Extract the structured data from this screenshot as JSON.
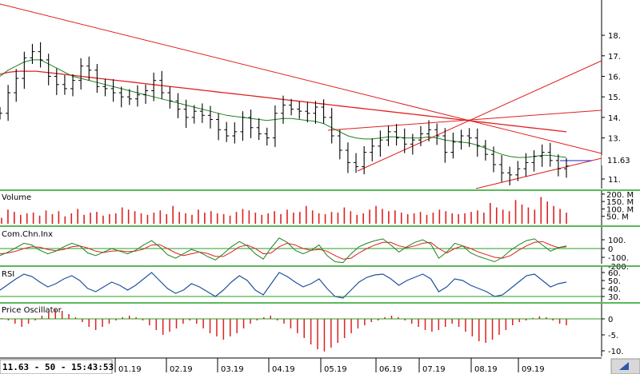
{
  "chart_data": {
    "type": "line",
    "months": [
      "01.19",
      "02.19",
      "03.19",
      "04.19",
      "05.19",
      "06.19",
      "07.19",
      "08.19",
      "09.19"
    ],
    "status": "11.63 - 50 - 15:43:53",
    "price": {
      "axis_ticks": [
        "11.",
        "12.",
        "13.",
        "14.",
        "15.",
        "16.",
        "17.",
        "18."
      ],
      "last_value": "11.63",
      "close": [
        14.2,
        15.2,
        15.9,
        16.9,
        17.2,
        16.8,
        16.0,
        15.6,
        15.4,
        15.8,
        16.5,
        16.3,
        15.5,
        15.4,
        15.2,
        15.0,
        14.9,
        15.1,
        15.3,
        15.8,
        15.2,
        14.8,
        14.4,
        14.0,
        14.3,
        14.1,
        13.9,
        13.4,
        13.1,
        13.3,
        14.0,
        13.5,
        13.2,
        13.0,
        14.2,
        14.6,
        14.4,
        14.3,
        14.2,
        14.5,
        14.0,
        13.1,
        12.4,
        11.8,
        11.6,
        12.3,
        12.6,
        12.9,
        13.3,
        13.0,
        12.7,
        12.9,
        13.2,
        13.4,
        13.1,
        12.3,
        12.8,
        13.1,
        13.0,
        12.6,
        12.2,
        11.7,
        11.3,
        11.2,
        11.5,
        11.8,
        12.1,
        12.3,
        11.9,
        11.5,
        11.63
      ],
      "ma_short": [
        16.0,
        16.3,
        16.5,
        16.7,
        16.8,
        16.8,
        16.6,
        16.4,
        16.2,
        16.0,
        15.9,
        15.8,
        15.7,
        15.6,
        15.5,
        15.4,
        15.3,
        15.2,
        15.1,
        15.0,
        14.9,
        14.8,
        14.7,
        14.6,
        14.5,
        14.4,
        14.3,
        14.2,
        14.1,
        14.05,
        14.0,
        13.95,
        13.9,
        13.85,
        13.9,
        13.95,
        13.95,
        13.9,
        13.85,
        13.8,
        13.7,
        13.5,
        13.3,
        13.1,
        13.0,
        12.95,
        12.95,
        13.0,
        13.05,
        13.05,
        13.0,
        13.0,
        13.0,
        13.05,
        13.0,
        12.9,
        12.85,
        12.8,
        12.75,
        12.65,
        12.5,
        12.35,
        12.2,
        12.1,
        12.05,
        12.05,
        12.1,
        12.15,
        12.15,
        12.1,
        12.05
      ],
      "ma_long": [
        16.1,
        16.2,
        16.25,
        16.25,
        16.25,
        16.2,
        16.15,
        16.1,
        16.05,
        16.0,
        15.95,
        15.9,
        15.85,
        15.8,
        15.75,
        15.7,
        15.65,
        15.6,
        15.55,
        15.5,
        15.45,
        15.4,
        15.35,
        15.3,
        15.25,
        15.2,
        15.15,
        15.1,
        15.05,
        15.0,
        14.95,
        14.9,
        14.85,
        14.8,
        14.75,
        14.7,
        14.65,
        14.6,
        14.55,
        14.5,
        14.45,
        14.4,
        14.35,
        14.3,
        14.25,
        14.2,
        14.15,
        14.1,
        14.05,
        14.0,
        13.95,
        13.9,
        13.85,
        13.8,
        13.75,
        13.7,
        13.65,
        13.6,
        13.55,
        13.5,
        13.45,
        13.4,
        13.35,
        13.3
      ]
    },
    "volume": {
      "label": "Volume",
      "axis_ticks": [
        "200. M",
        "150. M",
        "100. M",
        "50. M"
      ],
      "values": [
        40,
        95,
        80,
        60,
        70,
        75,
        55,
        90,
        65,
        85,
        50,
        70,
        100,
        60,
        75,
        80,
        55,
        65,
        70,
        110,
        95,
        85,
        70,
        60,
        75,
        90,
        65,
        120,
        80,
        70,
        60,
        95,
        75,
        85,
        70,
        65,
        55,
        80,
        100,
        90,
        75,
        60,
        70,
        85,
        65,
        95,
        75,
        80,
        120,
        90,
        70,
        65,
        80,
        75,
        110,
        85,
        60,
        70,
        95,
        120,
        100,
        85,
        90,
        75,
        65,
        70,
        80,
        60,
        75,
        95,
        85,
        70,
        65,
        70,
        80,
        90,
        75,
        140,
        110,
        95,
        85,
        160,
        130,
        110,
        95,
        180,
        150,
        120,
        100,
        75
      ]
    },
    "cci": {
      "label": "Com.Chn.Inx",
      "axis_ticks": [
        "100.",
        "0",
        "-100.",
        "-200."
      ],
      "values": [
        -80,
        -40,
        10,
        60,
        40,
        -20,
        -60,
        -30,
        20,
        60,
        30,
        -50,
        -80,
        -40,
        0,
        -30,
        -60,
        -20,
        40,
        90,
        20,
        -70,
        -110,
        -60,
        -10,
        -40,
        -90,
        -130,
        -60,
        20,
        80,
        30,
        -60,
        -120,
        10,
        120,
        70,
        -20,
        -60,
        -20,
        40,
        -80,
        -150,
        -160,
        -60,
        20,
        60,
        90,
        110,
        40,
        -40,
        20,
        70,
        100,
        50,
        -110,
        -40,
        60,
        30,
        -50,
        -90,
        -120,
        -150,
        -100,
        -20,
        40,
        90,
        110,
        40,
        -30,
        10,
        30
      ],
      "signal": [
        -60,
        -50,
        -30,
        0,
        20,
        15,
        -10,
        -25,
        -10,
        20,
        30,
        5,
        -30,
        -45,
        -30,
        -25,
        -35,
        -30,
        -5,
        40,
        45,
        0,
        -50,
        -80,
        -60,
        -40,
        -55,
        -90,
        -90,
        -40,
        20,
        40,
        0,
        -60,
        -50,
        20,
        60,
        40,
        0,
        -20,
        -10,
        -30,
        -80,
        -120,
        -110,
        -50,
        0,
        40,
        70,
        70,
        30,
        10,
        30,
        60,
        70,
        0,
        -50,
        0,
        30,
        0,
        -40,
        -70,
        -100,
        -110,
        -80,
        -20,
        30,
        70,
        80,
        40,
        10,
        20
      ]
    },
    "rsi": {
      "label": "RSI",
      "axis_ticks": [
        "60.",
        "50.",
        "40.",
        "30."
      ],
      "values": [
        38,
        45,
        52,
        58,
        55,
        48,
        42,
        46,
        52,
        56,
        50,
        40,
        36,
        42,
        48,
        44,
        38,
        44,
        52,
        60,
        50,
        40,
        34,
        38,
        46,
        42,
        36,
        30,
        38,
        48,
        56,
        50,
        38,
        32,
        46,
        60,
        55,
        48,
        42,
        46,
        52,
        40,
        30,
        28,
        38,
        48,
        54,
        57,
        58,
        52,
        44,
        50,
        54,
        58,
        52,
        36,
        42,
        52,
        50,
        44,
        40,
        36,
        30,
        32,
        40,
        48,
        56,
        58,
        50,
        42,
        46,
        48
      ]
    },
    "oscillator": {
      "label": "Price Oscillator",
      "axis_ticks": [
        "0",
        "-5.",
        "-10."
      ],
      "values": [
        0.2,
        -0.5,
        -1.5,
        -2.5,
        -1.5,
        -0.5,
        1.0,
        2.0,
        3.0,
        2.5,
        1.5,
        0.5,
        -1.0,
        -2.5,
        -3.5,
        -2.5,
        -1.5,
        -0.5,
        0.5,
        1.0,
        0.5,
        -0.5,
        -2.0,
        -3.5,
        -5.0,
        -4.0,
        -3.0,
        -1.5,
        -0.5,
        -1.5,
        -3.0,
        -4.5,
        -5.5,
        -6.5,
        -5.5,
        -4.5,
        -3.0,
        -1.5,
        -0.5,
        0.5,
        1.0,
        -0.5,
        -1.5,
        -3.0,
        -4.5,
        -6.0,
        -8.0,
        -9.5,
        -10.2,
        -9.0,
        -7.5,
        -6.0,
        -4.5,
        -3.0,
        -2.0,
        -1.0,
        -0.5,
        0.5,
        1.0,
        0.5,
        -0.5,
        -1.5,
        -2.5,
        -3.5,
        -4.0,
        -3.5,
        -2.5,
        -1.5,
        -2.5,
        -4.0,
        -5.5,
        -7.0,
        -7.5,
        -6.5,
        -5.0,
        -3.5,
        -2.0,
        -1.0,
        -0.5,
        0.3,
        0.8,
        0.5,
        -0.5,
        -1.5,
        -2.0
      ]
    }
  }
}
